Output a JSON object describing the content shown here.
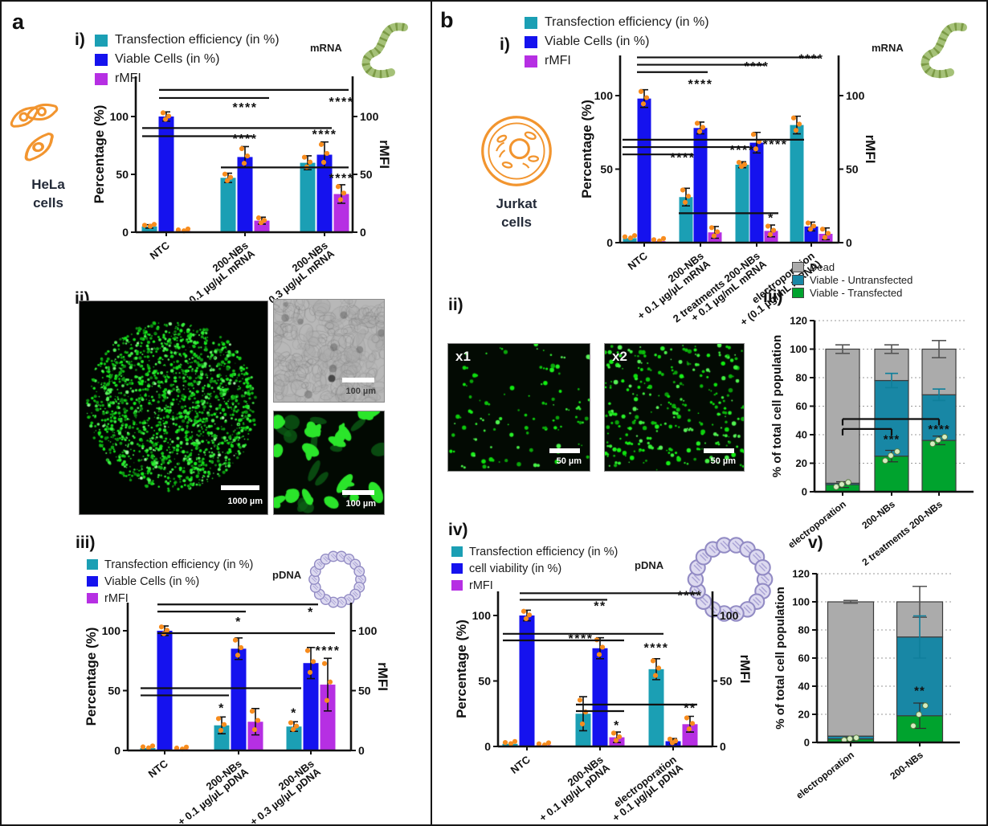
{
  "panel_a": {
    "letter": "a",
    "sections": {
      "i": "i)",
      "ii": "ii)",
      "iii": "iii)"
    },
    "cell": {
      "line1": "HeLa",
      "line2": "cells"
    },
    "mrna_label": "mRNA",
    "pdna_label": "pDNA",
    "images": {
      "well_scalebar": "1000 µm",
      "brightfield_scalebar": "100 µm",
      "fluor_scalebar": "100 µm"
    }
  },
  "panel_b": {
    "letter": "b",
    "sections": {
      "i": "i)",
      "ii": "ii)",
      "iii": "iii)",
      "iv": "iv)",
      "v": "v)"
    },
    "cell": {
      "line1": "Jurkat",
      "line2": "cells"
    },
    "mrna_label": "mRNA",
    "pdna_label": "pDNA",
    "images": {
      "tag1": "x1",
      "tag2": "x2",
      "scalebar": "50 µm"
    }
  },
  "colors": {
    "teal": "#1B9FB4",
    "blue": "#1512EE",
    "magenta": "#B62FE3",
    "orange_dot": "#F78C1E",
    "stacked_green": "#00A32E",
    "stacked_teal": "#1887A5",
    "stacked_gray": "#ABABAB",
    "cell_icon_orange": "#F2952F",
    "rna_green": "#8FAE55",
    "pdna_purple": "#8F88C2"
  },
  "legends": {
    "a_i": {
      "items": [
        {
          "label": "Transfection efficiency (in %)",
          "color": "#1B9FB4"
        },
        {
          "label": "Viable Cells (in %)",
          "color": "#1512EE"
        },
        {
          "label": "rMFI",
          "color": "#B62FE3"
        }
      ]
    },
    "a_iii": {
      "items": [
        {
          "label": "Transfection efficiency (in %)",
          "color": "#1B9FB4"
        },
        {
          "label": "Viable Cells (in %)",
          "color": "#1512EE"
        },
        {
          "label": "rMFI",
          "color": "#B62FE3"
        }
      ]
    },
    "b_i": {
      "items": [
        {
          "label": "Transfection efficiency (in %)",
          "color": "#1B9FB4"
        },
        {
          "label": "Viable Cells (in %)",
          "color": "#1512EE"
        },
        {
          "label": "rMFI",
          "color": "#B62FE3"
        }
      ]
    },
    "b_iv": {
      "items": [
        {
          "label": "Transfection efficiency (in %)",
          "color": "#1B9FB4"
        },
        {
          "label": "cell viability (in %)",
          "color": "#1512EE"
        },
        {
          "label": "rMFI",
          "color": "#B62FE3"
        }
      ]
    },
    "b_stacked": {
      "items": [
        {
          "label": "Dead",
          "color": "#ABABAB"
        },
        {
          "label": "Viable - Untransfected",
          "color": "#1887A5"
        },
        {
          "label": "Viable - Transfected",
          "color": "#00A32E"
        }
      ]
    }
  },
  "chart_data": [
    {
      "id": "a_i",
      "type": "bar",
      "dual_axis": true,
      "ylabel": "Percentage (%)",
      "y2label": "rMFI",
      "yticks": [
        0,
        50,
        100
      ],
      "y2ticks": [
        0,
        50,
        100
      ],
      "ylim": [
        0,
        135
      ],
      "categories": [
        [
          "NTC"
        ],
        [
          "200-NBs",
          "+ 0.1 µg/µL mRNA"
        ],
        [
          "200-NBs",
          "+ 0.3 µg/µL mRNA"
        ]
      ],
      "series": [
        {
          "name": "Transfection efficiency (in %)",
          "color": "#1B9FB4",
          "values": [
            5,
            47,
            60
          ],
          "errors": [
            1.5,
            4,
            6
          ]
        },
        {
          "name": "Viable Cells (in %)",
          "color": "#1512EE",
          "values": [
            100,
            65,
            67
          ],
          "errors": [
            4,
            9,
            11
          ]
        },
        {
          "name": "rMFI",
          "color": "#B62FE3",
          "values": [
            1,
            10,
            33
          ],
          "errors": [
            0.5,
            3,
            8
          ]
        }
      ],
      "sig_lines": [
        {
          "y": 123,
          "from": {
            "g": 0,
            "s": 1
          },
          "to": {
            "g": 2,
            "s": 2
          }
        },
        {
          "y": 116,
          "from": {
            "g": 0,
            "s": 1
          },
          "to": {
            "g": 1,
            "s": 2
          }
        },
        {
          "y": 90,
          "from": {
            "g": 0,
            "s": 0
          },
          "to": {
            "g": 2,
            "s": 1
          }
        },
        {
          "y": 83,
          "from": {
            "g": 0,
            "s": 0
          },
          "to": {
            "g": 1,
            "s": 1
          }
        },
        {
          "y": 56,
          "from": {
            "g": 1,
            "s": 0
          },
          "to": {
            "g": 2,
            "s": 2
          }
        }
      ],
      "sig_stars": [
        {
          "g": 1,
          "s": 1,
          "y": 104,
          "text": "****"
        },
        {
          "g": 2,
          "s": 2,
          "y": 109,
          "text": "****"
        },
        {
          "g": 1,
          "s": 1,
          "y": 77,
          "text": "****"
        },
        {
          "g": 2,
          "s": 1,
          "y": 81,
          "text": "****"
        },
        {
          "g": 2,
          "s": 2,
          "y": 43,
          "text": "****"
        }
      ]
    },
    {
      "id": "a_iii",
      "type": "bar",
      "dual_axis": true,
      "ylabel": "Percentage (%)",
      "y2label": "rMFI",
      "yticks": [
        0,
        50,
        100
      ],
      "y2ticks": [
        0,
        50,
        100
      ],
      "ylim": [
        0,
        130
      ],
      "categories": [
        [
          "NTC"
        ],
        [
          "200-NBs",
          "+ 0.1 µg/µL pDNA"
        ],
        [
          "200-NBs",
          "+ 0.3 µg/µL pDNA"
        ]
      ],
      "series": [
        {
          "name": "Transfection efficiency (in %)",
          "color": "#1B9FB4",
          "values": [
            2,
            21,
            20
          ],
          "errors": [
            1,
            7,
            4
          ]
        },
        {
          "name": "Viable Cells (in %)",
          "color": "#1512EE",
          "values": [
            100,
            85,
            73
          ],
          "errors": [
            4,
            9,
            13
          ]
        },
        {
          "name": "rMFI",
          "color": "#B62FE3",
          "values": [
            1,
            24,
            55
          ],
          "errors": [
            0.5,
            11,
            22
          ]
        }
      ],
      "sig_lines": [
        {
          "y": 122,
          "from": {
            "g": 0,
            "s": 1
          },
          "to": {
            "g": 2,
            "s": 1
          }
        },
        {
          "y": 116,
          "from": {
            "g": 0,
            "s": 1
          },
          "to": {
            "g": 1,
            "s": 1
          }
        },
        {
          "y": 98,
          "from": {
            "g": 0,
            "s": 1
          },
          "to": {
            "g": 2,
            "s": 2
          }
        },
        {
          "y": 52,
          "from": {
            "g": 0,
            "s": 0
          },
          "to": {
            "g": 2,
            "s": 0
          }
        },
        {
          "y": 46,
          "from": {
            "g": 0,
            "s": 0
          },
          "to": {
            "g": 1,
            "s": 0
          }
        }
      ],
      "sig_stars": [
        {
          "g": 1,
          "s": 1,
          "y": 104,
          "text": "*"
        },
        {
          "g": 2,
          "s": 1,
          "y": 112,
          "text": "*"
        },
        {
          "g": 2,
          "s": 2,
          "y": 80,
          "text": "****"
        },
        {
          "g": 1,
          "s": 0,
          "y": 32,
          "text": "*"
        },
        {
          "g": 2,
          "s": 0,
          "y": 28,
          "text": "*"
        }
      ]
    },
    {
      "id": "b_i",
      "type": "bar",
      "dual_axis": true,
      "ylabel": "Percentage (%)",
      "y2label": "rMFI",
      "yticks": [
        0,
        50,
        100
      ],
      "y2ticks": [
        0,
        50,
        100
      ],
      "ylim": [
        0,
        135
      ],
      "categories": [
        [
          "NTC"
        ],
        [
          "200-NBs",
          "+ 0.1 µg/µL mRNA"
        ],
        [
          "2 treatments 200-NBs",
          "+ 0.1 µg/mL mRNA"
        ],
        [
          "electroporation",
          "+ (0.1 µg/mL mRNA)"
        ]
      ],
      "series": [
        {
          "name": "Transfection efficiency (in %)",
          "color": "#1B9FB4",
          "values": [
            3,
            31,
            53,
            80
          ],
          "errors": [
            1,
            6,
            2,
            6
          ]
        },
        {
          "name": "Viable Cells (in %)",
          "color": "#1512EE",
          "values": [
            98,
            78,
            68,
            11
          ],
          "errors": [
            6,
            4,
            7,
            3
          ]
        },
        {
          "name": "rMFI",
          "color": "#B62FE3",
          "values": [
            1,
            7,
            8,
            6
          ],
          "errors": [
            0.5,
            4,
            4,
            4
          ]
        }
      ],
      "sig_lines": [
        {
          "y": 126,
          "from": {
            "g": 0,
            "s": 1
          },
          "to": {
            "g": 3,
            "s": 1
          }
        },
        {
          "y": 121,
          "from": {
            "g": 0,
            "s": 1
          },
          "to": {
            "g": 2,
            "s": 1
          }
        },
        {
          "y": 116,
          "from": {
            "g": 0,
            "s": 1
          },
          "to": {
            "g": 1,
            "s": 1
          }
        },
        {
          "y": 70,
          "from": {
            "g": 0,
            "s": 0
          },
          "to": {
            "g": 3,
            "s": 0
          }
        },
        {
          "y": 65,
          "from": {
            "g": 0,
            "s": 0
          },
          "to": {
            "g": 2,
            "s": 0
          }
        },
        {
          "y": 60,
          "from": {
            "g": 0,
            "s": 0
          },
          "to": {
            "g": 1,
            "s": 0
          }
        },
        {
          "y": 20,
          "from": {
            "g": 1,
            "s": 0
          },
          "to": {
            "g": 2,
            "s": 2
          }
        }
      ],
      "sig_stars": [
        {
          "g": 1,
          "s": 1,
          "y": 105,
          "text": "****"
        },
        {
          "g": 2,
          "s": 1,
          "y": 117,
          "text": "****"
        },
        {
          "g": 3,
          "s": 1,
          "y": 122,
          "text": "****"
        },
        {
          "g": 1,
          "s": 0,
          "y": 55,
          "text": "****",
          "dx": -4
        },
        {
          "g": 2,
          "s": 0,
          "y": 60,
          "text": "****"
        },
        {
          "g": 3,
          "s": 0,
          "y": 64,
          "text": "****",
          "dx": -27
        },
        {
          "g": 2,
          "s": 2,
          "y": 14,
          "text": "*"
        }
      ]
    },
    {
      "id": "b_iii",
      "type": "stacked_bar",
      "ylabel": "% of total cell population",
      "yticks": [
        0,
        20,
        40,
        60,
        80,
        100,
        120
      ],
      "ylim": [
        0,
        120
      ],
      "grid": "dotted",
      "categories": [
        "electroporation",
        "200-NBs",
        "2 treatments 200-NBs"
      ],
      "series": [
        {
          "name": "Viable - Transfected",
          "color": "#00A32E",
          "values": [
            5,
            25,
            36
          ],
          "errors": [
            2,
            4,
            3
          ]
        },
        {
          "name": "Viable - Untransfected",
          "color": "#1887A5",
          "values": [
            1,
            53,
            32
          ],
          "errors": [
            0,
            5,
            4
          ]
        },
        {
          "name": "Dead",
          "color": "#ABABAB",
          "values": [
            94,
            22,
            32
          ],
          "errors": [
            3,
            3,
            6
          ]
        }
      ],
      "brackets": [
        {
          "y": 51,
          "from": 0,
          "to": 2
        },
        {
          "y": 44,
          "from": 0,
          "to": 1
        }
      ],
      "sig_stars": [
        {
          "cat": 1,
          "y": 34,
          "text": "***"
        },
        {
          "cat": 2,
          "y": 41,
          "text": "****"
        }
      ]
    },
    {
      "id": "b_iv",
      "type": "bar",
      "dual_axis": true,
      "ylabel": "Percentage (%)",
      "y2label": "rMFI",
      "yticks": [
        0,
        50,
        100
      ],
      "y2ticks": [
        0,
        50,
        100
      ],
      "ylim": [
        0,
        125
      ],
      "categories": [
        [
          "NTC"
        ],
        [
          "200-NBs",
          "+ 0.1 µg/µL pDNA"
        ],
        [
          "electroporation",
          "+ 0.1 µg/µL pDNA"
        ]
      ],
      "series": [
        {
          "name": "Transfection efficiency (in %)",
          "color": "#1B9FB4",
          "values": [
            2,
            25,
            59
          ],
          "errors": [
            1,
            13,
            8
          ]
        },
        {
          "name": "cell viability (in %)",
          "color": "#1512EE",
          "values": [
            100,
            75,
            4
          ],
          "errors": [
            4,
            8,
            2
          ]
        },
        {
          "name": "rMFI",
          "color": "#B62FE3",
          "values": [
            1,
            7,
            17
          ],
          "errors": [
            0.5,
            4,
            6
          ]
        }
      ],
      "sig_lines": [
        {
          "y": 117,
          "from": {
            "g": 0,
            "s": 1
          },
          "to": {
            "g": 2,
            "s": 2
          }
        },
        {
          "y": 112,
          "from": {
            "g": 0,
            "s": 1
          },
          "to": {
            "g": 1,
            "s": 1
          }
        },
        {
          "y": 86,
          "from": {
            "g": 0,
            "s": 0
          },
          "to": {
            "g": 2,
            "s": 0
          }
        },
        {
          "y": 81,
          "from": {
            "g": 0,
            "s": 0
          },
          "to": {
            "g": 1,
            "s": 2
          }
        },
        {
          "y": 32,
          "from": {
            "g": 1,
            "s": 0
          },
          "to": {
            "g": 2,
            "s": 2
          }
        },
        {
          "y": 27,
          "from": {
            "g": 1,
            "s": 0
          },
          "to": {
            "g": 1,
            "s": 2
          }
        }
      ],
      "sig_stars": [
        {
          "g": 1,
          "s": 1,
          "y": 104,
          "text": "**"
        },
        {
          "g": 2,
          "s": 2,
          "y": 112,
          "text": "****"
        },
        {
          "g": 1,
          "s": 1,
          "y": 79,
          "text": "****",
          "dx": -24
        },
        {
          "g": 2,
          "s": 0,
          "y": 72,
          "text": "****"
        },
        {
          "g": 1,
          "s": 2,
          "y": 13,
          "text": "*"
        },
        {
          "g": 2,
          "s": 2,
          "y": 26,
          "text": "**"
        }
      ]
    },
    {
      "id": "b_v",
      "type": "stacked_bar",
      "ylabel": "% of total cell population",
      "yticks": [
        0,
        20,
        40,
        60,
        80,
        100,
        120
      ],
      "ylim": [
        0,
        120
      ],
      "grid": "dotted",
      "categories": [
        "electroporation",
        "200-NBs"
      ],
      "series": [
        {
          "name": "Viable - Transfected",
          "color": "#00A32E",
          "values": [
            2.5,
            19
          ],
          "errors": [
            1,
            9
          ]
        },
        {
          "name": "Viable - Untransfected",
          "color": "#1887A5",
          "values": [
            2,
            56
          ],
          "errors": [
            0,
            15
          ]
        },
        {
          "name": "Dead",
          "color": "#ABABAB",
          "values": [
            95.5,
            25
          ],
          "errors": [
            1,
            11
          ]
        }
      ],
      "brackets": [],
      "sig_stars": [
        {
          "cat": 1,
          "y": 34,
          "text": "**"
        }
      ]
    }
  ]
}
